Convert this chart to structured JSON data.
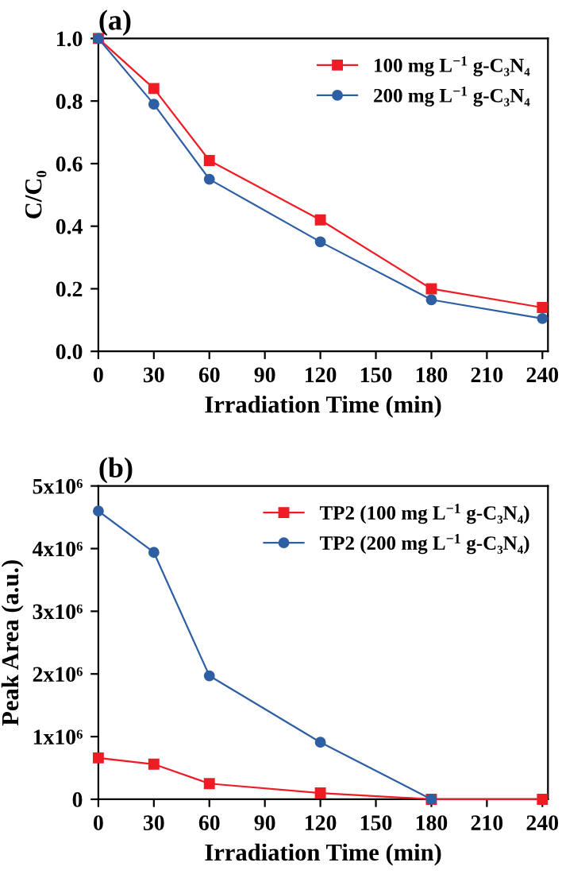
{
  "chart_data": [
    {
      "type": "line",
      "title": "(a)",
      "xlabel": "Irradiation Time (min)",
      "ylabel": "C/C₀",
      "x": [
        0,
        30,
        60,
        120,
        180,
        240
      ],
      "series": [
        {
          "name": "100 mg L$^{−1}$ g-C₃N₄",
          "color": "#ee1c25",
          "marker": "square",
          "values": [
            1.0,
            0.84,
            0.61,
            0.42,
            0.2,
            0.14
          ]
        },
        {
          "name": "200 mg L$^{−1}$ g-C₃N₄",
          "color": "#2e5fa3",
          "marker": "circle",
          "values": [
            1.0,
            0.79,
            0.55,
            0.35,
            0.165,
            0.105
          ]
        }
      ],
      "xlim": [
        0,
        243
      ],
      "xticks": [
        0,
        30,
        60,
        90,
        120,
        150,
        180,
        210,
        240
      ],
      "ylim": [
        0,
        1.0
      ],
      "yticks": [
        {
          "value": 0,
          "label": "0.0"
        },
        0.2,
        0.4,
        0.6,
        0.8,
        {
          "value": 1.0,
          "label": "1.0"
        }
      ],
      "legend": "top right",
      "grid": false
    },
    {
      "type": "line",
      "title": "(b)",
      "xlabel": "Irradiation Time (min)",
      "ylabel": "Peak Area (a.u.)",
      "series": [
        {
          "name": "TP2 (100 mg L$^{−1}$ g-C₃N₄)",
          "color": "#ee1c25",
          "marker": "square",
          "x": [
            0,
            30,
            60,
            120,
            180,
            240
          ],
          "values": [
            660000,
            560000,
            250000,
            100000,
            0,
            0
          ]
        },
        {
          "name": "TP2 (200 mg L$^{−1}$ g-C₃N₄)",
          "color": "#2e5fa3",
          "marker": "circle",
          "x": [
            0,
            30,
            60,
            120,
            180
          ],
          "values": [
            4600000,
            3940000,
            1970000,
            910000,
            0
          ]
        }
      ],
      "xlim": [
        0,
        243
      ],
      "xticks": [
        0,
        30,
        60,
        90,
        120,
        150,
        180,
        210,
        240
      ],
      "ylim": [
        0,
        5000000
      ],
      "yticks": [
        0,
        {
          "value": 1000000,
          "label": "1x10⁶"
        },
        {
          "value": 2000000,
          "label": "2x10⁶"
        },
        {
          "value": 3000000,
          "label": "3x10⁶"
        },
        {
          "value": 4000000,
          "label": "4x10⁶"
        },
        {
          "value": 5000000,
          "label": "5x10⁶"
        }
      ],
      "legend": "top right",
      "grid": false
    }
  ]
}
